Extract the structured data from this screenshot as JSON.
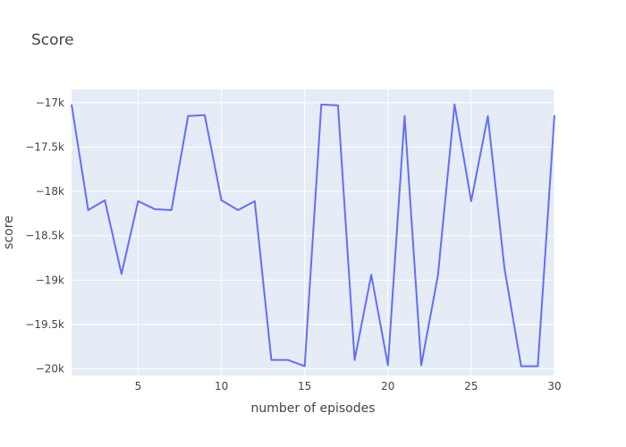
{
  "chart_data": {
    "type": "line",
    "title": "Score",
    "xlabel": "number of episodes",
    "ylabel": "score",
    "xlim": [
      1,
      30
    ],
    "ylim": [
      -20075,
      -16850
    ],
    "x_ticks": [
      5,
      10,
      15,
      20,
      25,
      30
    ],
    "x_tick_labels": [
      "5",
      "10",
      "15",
      "20",
      "25",
      "30"
    ],
    "y_ticks": [
      -17000,
      -17500,
      -18000,
      -18500,
      -19000,
      -19500,
      -20000
    ],
    "y_tick_labels": [
      "−17k",
      "−17.5k",
      "−18k",
      "−18.5k",
      "−19k",
      "−19.5k",
      "−20k"
    ],
    "grid": true,
    "colors": {
      "plot_bg": "#e5ecf6",
      "grid": "#ffffff",
      "line": "#636efa",
      "text": "#444444"
    },
    "series": [
      {
        "name": "score",
        "x": [
          1,
          2,
          3,
          4,
          5,
          6,
          7,
          8,
          9,
          10,
          11,
          12,
          13,
          14,
          15,
          16,
          17,
          18,
          19,
          20,
          21,
          22,
          23,
          24,
          25,
          26,
          27,
          28,
          29,
          30
        ],
        "values": [
          -17020,
          -18210,
          -18100,
          -18930,
          -18110,
          -18200,
          -18210,
          -17150,
          -17140,
          -18100,
          -18210,
          -18110,
          -19900,
          -19900,
          -19970,
          -17020,
          -17030,
          -19900,
          -18940,
          -19960,
          -17150,
          -19960,
          -18950,
          -17020,
          -18110,
          -17150,
          -18870,
          -19970,
          -19970,
          -17140
        ]
      }
    ]
  }
}
